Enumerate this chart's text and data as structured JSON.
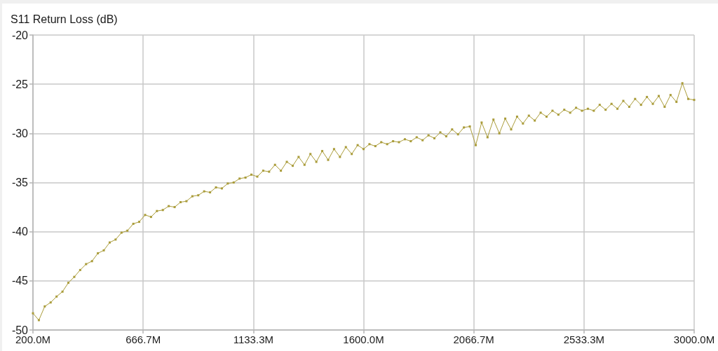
{
  "chart_data": {
    "type": "line",
    "ylabel": "S11 Return Loss (dB)",
    "x": [
      200,
      225,
      250,
      275,
      300,
      325,
      350,
      375,
      400,
      425,
      450,
      475,
      500,
      525,
      550,
      575,
      600,
      625,
      650,
      675,
      700,
      725,
      750,
      775,
      800,
      825,
      850,
      875,
      900,
      925,
      950,
      975,
      1000,
      1025,
      1050,
      1075,
      1100,
      1125,
      1150,
      1175,
      1200,
      1225,
      1250,
      1275,
      1300,
      1325,
      1350,
      1375,
      1400,
      1425,
      1450,
      1475,
      1500,
      1525,
      1550,
      1575,
      1600,
      1625,
      1650,
      1675,
      1700,
      1725,
      1750,
      1775,
      1800,
      1825,
      1850,
      1875,
      1900,
      1925,
      1950,
      1975,
      2000,
      2025,
      2050,
      2075,
      2100,
      2125,
      2150,
      2175,
      2200,
      2225,
      2250,
      2275,
      2300,
      2325,
      2350,
      2375,
      2400,
      2425,
      2450,
      2475,
      2500,
      2525,
      2550,
      2575,
      2600,
      2625,
      2650,
      2675,
      2700,
      2725,
      2750,
      2775,
      2800,
      2825,
      2850,
      2875,
      2900,
      2925,
      2950,
      2975,
      3000
    ],
    "series": [
      {
        "color": "#aa9c3a",
        "values": [
          -48.3,
          -49.0,
          -47.6,
          -47.2,
          -46.6,
          -46.1,
          -45.2,
          -44.6,
          -43.9,
          -43.3,
          -43.0,
          -42.2,
          -41.9,
          -41.1,
          -40.8,
          -40.1,
          -39.9,
          -39.2,
          -39.0,
          -38.3,
          -38.5,
          -37.9,
          -37.8,
          -37.4,
          -37.5,
          -37.0,
          -36.9,
          -36.4,
          -36.3,
          -35.9,
          -36.0,
          -35.5,
          -35.6,
          -35.1,
          -35.0,
          -34.6,
          -34.5,
          -34.2,
          -34.4,
          -33.8,
          -33.9,
          -33.2,
          -33.8,
          -32.9,
          -33.3,
          -32.4,
          -33.2,
          -32.1,
          -32.9,
          -31.8,
          -32.7,
          -31.6,
          -32.4,
          -31.4,
          -32.1,
          -31.2,
          -31.6,
          -31.1,
          -31.3,
          -30.9,
          -31.1,
          -30.8,
          -30.9,
          -30.6,
          -30.8,
          -30.4,
          -30.7,
          -30.2,
          -30.5,
          -29.9,
          -30.3,
          -29.6,
          -30.1,
          -29.4,
          -29.3,
          -31.2,
          -28.9,
          -30.4,
          -28.6,
          -30.0,
          -28.5,
          -29.6,
          -28.3,
          -29.0,
          -28.2,
          -28.7,
          -27.9,
          -28.3,
          -27.7,
          -28.1,
          -27.6,
          -27.9,
          -27.4,
          -27.7,
          -27.5,
          -27.7,
          -27.1,
          -27.6,
          -27.0,
          -27.5,
          -26.7,
          -27.3,
          -26.5,
          -27.1,
          -26.3,
          -27.0,
          -26.2,
          -27.3,
          -26.1,
          -26.8,
          -24.9,
          -26.5,
          -26.6
        ]
      }
    ],
    "xlim": [
      200,
      3000
    ],
    "xticks": [
      {
        "value": 200,
        "label": "200.0M"
      },
      {
        "value": 666.667,
        "label": "666.7M"
      },
      {
        "value": 1133.333,
        "label": "1133.3M"
      },
      {
        "value": 1600,
        "label": "1600.0M"
      },
      {
        "value": 2066.667,
        "label": "2066.7M"
      },
      {
        "value": 2533.333,
        "label": "2533.3M"
      },
      {
        "value": 3000,
        "label": "3000.0M"
      }
    ],
    "ylim": [
      -50,
      -20
    ],
    "yticks": [
      -50,
      -45,
      -40,
      -35,
      -30,
      -25,
      -20
    ],
    "grid": true,
    "marker": "square",
    "line_style": "solid"
  }
}
